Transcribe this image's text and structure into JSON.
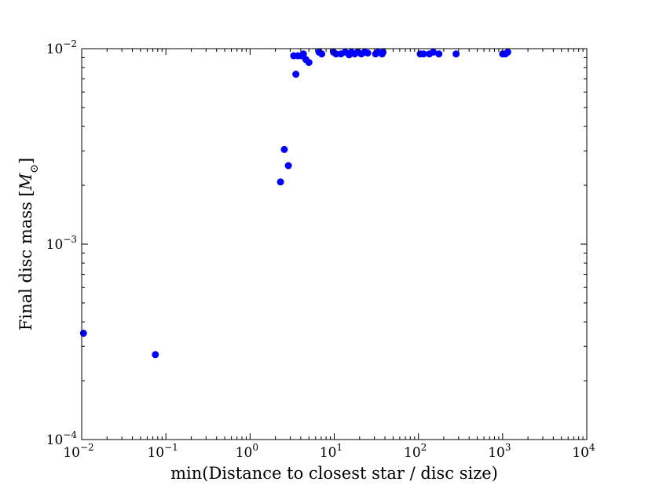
{
  "chart_data": {
    "type": "scatter",
    "title": "",
    "xlabel": "min(Distance to closest star / disc size)",
    "ylabel": "Final disc mass",
    "ylabel_unit_base": "M",
    "ylabel_unit_sub": "⊙",
    "xscale": "log",
    "yscale": "log",
    "xlim": [
      0.01,
      10000
    ],
    "ylim": [
      0.0001,
      0.01
    ],
    "grid": false,
    "legend": "none",
    "marker_color": "#0000ff",
    "xticks": [
      {
        "base": "10",
        "exp": "−2",
        "value": 0.01
      },
      {
        "base": "10",
        "exp": "−1",
        "value": 0.1
      },
      {
        "base": "10",
        "exp": "0",
        "value": 1
      },
      {
        "base": "10",
        "exp": "1",
        "value": 10
      },
      {
        "base": "10",
        "exp": "2",
        "value": 100
      },
      {
        "base": "10",
        "exp": "3",
        "value": 1000
      },
      {
        "base": "10",
        "exp": "4",
        "value": 10000
      }
    ],
    "yticks": [
      {
        "base": "10",
        "exp": "−4",
        "value": 0.0001
      },
      {
        "base": "10",
        "exp": "−3",
        "value": 0.001
      },
      {
        "base": "10",
        "exp": "−2",
        "value": 0.01
      }
    ],
    "points": [
      {
        "x": 0.0105,
        "y": 0.00035
      },
      {
        "x": 0.075,
        "y": 0.000272
      },
      {
        "x": 2.3,
        "y": 0.00208
      },
      {
        "x": 2.55,
        "y": 0.00305
      },
      {
        "x": 2.85,
        "y": 0.00252
      },
      {
        "x": 3.3,
        "y": 0.0092
      },
      {
        "x": 3.5,
        "y": 0.0074
      },
      {
        "x": 3.7,
        "y": 0.0092
      },
      {
        "x": 4.1,
        "y": 0.0092
      },
      {
        "x": 4.3,
        "y": 0.0094
      },
      {
        "x": 4.6,
        "y": 0.0088
      },
      {
        "x": 5.0,
        "y": 0.0085
      },
      {
        "x": 6.6,
        "y": 0.0096
      },
      {
        "x": 7.1,
        "y": 0.0094
      },
      {
        "x": 9.8,
        "y": 0.0096
      },
      {
        "x": 10.5,
        "y": 0.0094
      },
      {
        "x": 12.0,
        "y": 0.0094
      },
      {
        "x": 13.5,
        "y": 0.0096
      },
      {
        "x": 15.0,
        "y": 0.0093
      },
      {
        "x": 16.0,
        "y": 0.0096
      },
      {
        "x": 17.5,
        "y": 0.0094
      },
      {
        "x": 19.0,
        "y": 0.0096
      },
      {
        "x": 21.0,
        "y": 0.0094
      },
      {
        "x": 23.0,
        "y": 0.0096
      },
      {
        "x": 25.0,
        "y": 0.0095
      },
      {
        "x": 31.0,
        "y": 0.0094
      },
      {
        "x": 33.0,
        "y": 0.0096
      },
      {
        "x": 37.0,
        "y": 0.0094
      },
      {
        "x": 38.0,
        "y": 0.0096
      },
      {
        "x": 105,
        "y": 0.0094
      },
      {
        "x": 115,
        "y": 0.0094
      },
      {
        "x": 135,
        "y": 0.0094
      },
      {
        "x": 150,
        "y": 0.0096
      },
      {
        "x": 175,
        "y": 0.0094
      },
      {
        "x": 280,
        "y": 0.0094
      },
      {
        "x": 1000,
        "y": 0.0094
      },
      {
        "x": 1080,
        "y": 0.0094
      },
      {
        "x": 1150,
        "y": 0.0096
      }
    ]
  }
}
